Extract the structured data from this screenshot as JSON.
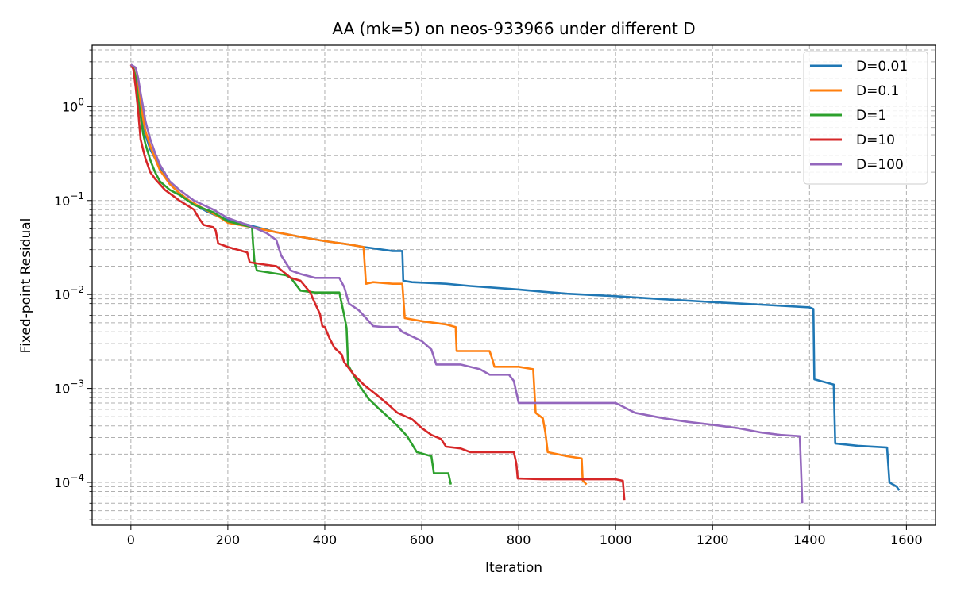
{
  "chart_data": {
    "type": "line",
    "title": "AA (mk=5) on neos-933966 under different D",
    "xlabel": "Iteration",
    "ylabel": "Fixed-point Residual",
    "xscale": "linear",
    "yscale": "log",
    "xlim": [
      -80,
      1660
    ],
    "ylim": [
      3.5e-05,
      4.5
    ],
    "xticks": [
      0,
      200,
      400,
      600,
      800,
      1000,
      1200,
      1400,
      1600
    ],
    "xtick_labels": [
      "0",
      "200",
      "400",
      "600",
      "800",
      "1000",
      "1200",
      "1400",
      "1600"
    ],
    "yticks": [
      0.0001,
      0.001,
      0.01,
      0.1,
      1
    ],
    "ytick_labels": [
      {
        "base": "10",
        "exp": "−4"
      },
      {
        "base": "10",
        "exp": "−3"
      },
      {
        "base": "10",
        "exp": "−2"
      },
      {
        "base": "10",
        "exp": "−1"
      },
      {
        "base": "10",
        "exp": "0"
      }
    ],
    "grid": true,
    "legend_position": "top-right",
    "series": [
      {
        "name": "D=0.01",
        "color": "#1f77b4",
        "points": [
          [
            0,
            2.8
          ],
          [
            5,
            2.6
          ],
          [
            10,
            2.0
          ],
          [
            15,
            1.5
          ],
          [
            20,
            1.0
          ],
          [
            25,
            0.7
          ],
          [
            30,
            0.5
          ],
          [
            40,
            0.35
          ],
          [
            50,
            0.28
          ],
          [
            60,
            0.22
          ],
          [
            70,
            0.18
          ],
          [
            80,
            0.15
          ],
          [
            100,
            0.12
          ],
          [
            120,
            0.1
          ],
          [
            140,
            0.085
          ],
          [
            160,
            0.075
          ],
          [
            180,
            0.068
          ],
          [
            200,
            0.062
          ],
          [
            230,
            0.057
          ],
          [
            260,
            0.052
          ],
          [
            300,
            0.046
          ],
          [
            350,
            0.041
          ],
          [
            400,
            0.037
          ],
          [
            450,
            0.034
          ],
          [
            480,
            0.032
          ],
          [
            500,
            0.031
          ],
          [
            540,
            0.029
          ],
          [
            560,
            0.029
          ],
          [
            562,
            0.014
          ],
          [
            580,
            0.0135
          ],
          [
            650,
            0.013
          ],
          [
            700,
            0.0123
          ],
          [
            750,
            0.0118
          ],
          [
            800,
            0.0113
          ],
          [
            850,
            0.0107
          ],
          [
            900,
            0.0102
          ],
          [
            1000,
            0.0096
          ],
          [
            1100,
            0.0089
          ],
          [
            1200,
            0.0083
          ],
          [
            1300,
            0.0078
          ],
          [
            1400,
            0.0073
          ],
          [
            1408,
            0.007
          ],
          [
            1410,
            0.00125
          ],
          [
            1450,
            0.0011
          ],
          [
            1453,
            0.00026
          ],
          [
            1500,
            0.000245
          ],
          [
            1560,
            0.000235
          ],
          [
            1565,
            0.0001
          ],
          [
            1580,
            9e-05
          ],
          [
            1585,
            8.2e-05
          ]
        ]
      },
      {
        "name": "D=0.1",
        "color": "#ff7f0e",
        "points": [
          [
            0,
            2.8
          ],
          [
            5,
            2.6
          ],
          [
            10,
            2.1
          ],
          [
            15,
            1.6
          ],
          [
            20,
            1.1
          ],
          [
            25,
            0.75
          ],
          [
            30,
            0.55
          ],
          [
            40,
            0.38
          ],
          [
            50,
            0.28
          ],
          [
            60,
            0.21
          ],
          [
            80,
            0.15
          ],
          [
            100,
            0.12
          ],
          [
            120,
            0.1
          ],
          [
            150,
            0.082
          ],
          [
            180,
            0.068
          ],
          [
            200,
            0.058
          ],
          [
            250,
            0.052
          ],
          [
            300,
            0.046
          ],
          [
            350,
            0.041
          ],
          [
            400,
            0.037
          ],
          [
            450,
            0.034
          ],
          [
            480,
            0.032
          ],
          [
            485,
            0.013
          ],
          [
            500,
            0.0135
          ],
          [
            540,
            0.013
          ],
          [
            560,
            0.013
          ],
          [
            565,
            0.0056
          ],
          [
            600,
            0.0052
          ],
          [
            650,
            0.0048
          ],
          [
            670,
            0.0045
          ],
          [
            672,
            0.0025
          ],
          [
            700,
            0.0025
          ],
          [
            740,
            0.0025
          ],
          [
            745,
            0.0021
          ],
          [
            750,
            0.0017
          ],
          [
            800,
            0.0017
          ],
          [
            830,
            0.0016
          ],
          [
            835,
            0.00055
          ],
          [
            850,
            0.00048
          ],
          [
            855,
            0.00034
          ],
          [
            860,
            0.00021
          ],
          [
            900,
            0.00019
          ],
          [
            930,
            0.00018
          ],
          [
            932,
            0.000105
          ],
          [
            940,
            9.5e-05
          ]
        ]
      },
      {
        "name": "D=1",
        "color": "#2ca02c",
        "points": [
          [
            0,
            2.8
          ],
          [
            5,
            2.6
          ],
          [
            10,
            2.0
          ],
          [
            15,
            1.2
          ],
          [
            20,
            0.8
          ],
          [
            25,
            0.52
          ],
          [
            30,
            0.4
          ],
          [
            40,
            0.27
          ],
          [
            50,
            0.2
          ],
          [
            60,
            0.16
          ],
          [
            80,
            0.13
          ],
          [
            100,
            0.115
          ],
          [
            130,
            0.09
          ],
          [
            170,
            0.075
          ],
          [
            200,
            0.06
          ],
          [
            250,
            0.052
          ],
          [
            252,
            0.035
          ],
          [
            255,
            0.022
          ],
          [
            260,
            0.018
          ],
          [
            320,
            0.016
          ],
          [
            330,
            0.015
          ],
          [
            350,
            0.011
          ],
          [
            380,
            0.0105
          ],
          [
            430,
            0.0105
          ],
          [
            440,
            0.006
          ],
          [
            445,
            0.0044
          ],
          [
            448,
            0.0018
          ],
          [
            450,
            0.0017
          ],
          [
            470,
            0.0011
          ],
          [
            490,
            0.00078
          ],
          [
            510,
            0.00062
          ],
          [
            530,
            0.0005
          ],
          [
            550,
            0.0004
          ],
          [
            570,
            0.00031
          ],
          [
            590,
            0.00021
          ],
          [
            620,
            0.00019
          ],
          [
            625,
            0.000125
          ],
          [
            655,
            0.000125
          ],
          [
            660,
            9.5e-05
          ]
        ]
      },
      {
        "name": "D=10",
        "color": "#d62728",
        "points": [
          [
            0,
            2.8
          ],
          [
            5,
            2.5
          ],
          [
            10,
            1.6
          ],
          [
            15,
            0.9
          ],
          [
            20,
            0.45
          ],
          [
            25,
            0.35
          ],
          [
            30,
            0.28
          ],
          [
            40,
            0.2
          ],
          [
            50,
            0.17
          ],
          [
            70,
            0.13
          ],
          [
            100,
            0.1
          ],
          [
            130,
            0.08
          ],
          [
            140,
            0.065
          ],
          [
            150,
            0.055
          ],
          [
            170,
            0.052
          ],
          [
            175,
            0.048
          ],
          [
            180,
            0.035
          ],
          [
            200,
            0.032
          ],
          [
            220,
            0.03
          ],
          [
            240,
            0.028
          ],
          [
            245,
            0.022
          ],
          [
            270,
            0.021
          ],
          [
            300,
            0.02
          ],
          [
            330,
            0.015
          ],
          [
            350,
            0.014
          ],
          [
            370,
            0.0105
          ],
          [
            380,
            0.008
          ],
          [
            390,
            0.0062
          ],
          [
            395,
            0.0046
          ],
          [
            400,
            0.0045
          ],
          [
            410,
            0.0034
          ],
          [
            420,
            0.0027
          ],
          [
            435,
            0.0023
          ],
          [
            440,
            0.0019
          ],
          [
            460,
            0.0014
          ],
          [
            480,
            0.0011
          ],
          [
            510,
            0.00083
          ],
          [
            530,
            0.00068
          ],
          [
            550,
            0.00055
          ],
          [
            580,
            0.00047
          ],
          [
            600,
            0.00038
          ],
          [
            620,
            0.00032
          ],
          [
            640,
            0.00029
          ],
          [
            648,
            0.00025
          ],
          [
            650,
            0.00024
          ],
          [
            680,
            0.00023
          ],
          [
            700,
            0.00021
          ],
          [
            730,
            0.00021
          ],
          [
            740,
            0.00021
          ],
          [
            780,
            0.00021
          ],
          [
            790,
            0.00021
          ],
          [
            795,
            0.00016
          ],
          [
            798,
            0.00011
          ],
          [
            850,
            0.000108
          ],
          [
            900,
            0.000108
          ],
          [
            1000,
            0.000108
          ],
          [
            1015,
            0.000104
          ],
          [
            1018,
            6.5e-05
          ]
        ]
      },
      {
        "name": "D=100",
        "color": "#9467bd",
        "points": [
          [
            0,
            2.8
          ],
          [
            5,
            2.7
          ],
          [
            10,
            2.6
          ],
          [
            15,
            2.0
          ],
          [
            20,
            1.4
          ],
          [
            25,
            1.0
          ],
          [
            30,
            0.7
          ],
          [
            40,
            0.45
          ],
          [
            50,
            0.32
          ],
          [
            60,
            0.24
          ],
          [
            80,
            0.16
          ],
          [
            100,
            0.13
          ],
          [
            130,
            0.1
          ],
          [
            170,
            0.08
          ],
          [
            200,
            0.065
          ],
          [
            240,
            0.055
          ],
          [
            260,
            0.05
          ],
          [
            280,
            0.045
          ],
          [
            300,
            0.038
          ],
          [
            310,
            0.026
          ],
          [
            330,
            0.018
          ],
          [
            350,
            0.0165
          ],
          [
            380,
            0.015
          ],
          [
            400,
            0.015
          ],
          [
            430,
            0.015
          ],
          [
            440,
            0.012
          ],
          [
            450,
            0.008
          ],
          [
            470,
            0.0068
          ],
          [
            480,
            0.006
          ],
          [
            500,
            0.0046
          ],
          [
            520,
            0.0045
          ],
          [
            550,
            0.0045
          ],
          [
            560,
            0.004
          ],
          [
            600,
            0.0032
          ],
          [
            620,
            0.0026
          ],
          [
            630,
            0.0018
          ],
          [
            660,
            0.0018
          ],
          [
            680,
            0.0018
          ],
          [
            720,
            0.0016
          ],
          [
            740,
            0.0014
          ],
          [
            780,
            0.0014
          ],
          [
            790,
            0.0012
          ],
          [
            800,
            0.0007
          ],
          [
            850,
            0.0007
          ],
          [
            900,
            0.0007
          ],
          [
            1000,
            0.0007
          ],
          [
            1040,
            0.00055
          ],
          [
            1100,
            0.00048
          ],
          [
            1150,
            0.00044
          ],
          [
            1200,
            0.00041
          ],
          [
            1250,
            0.00038
          ],
          [
            1300,
            0.00034
          ],
          [
            1340,
            0.00032
          ],
          [
            1380,
            0.00031
          ],
          [
            1385,
            6e-05
          ]
        ]
      }
    ]
  }
}
